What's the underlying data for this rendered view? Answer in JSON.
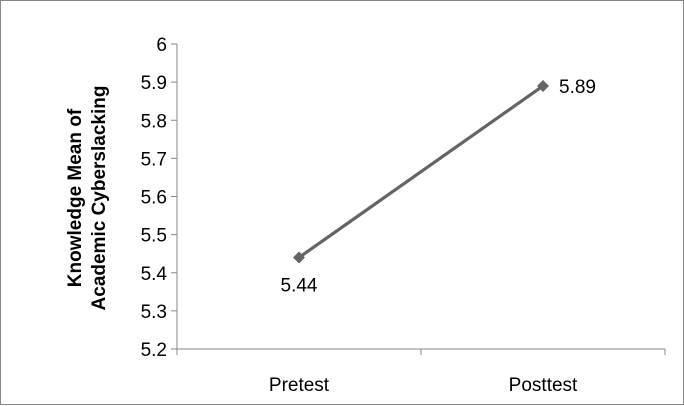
{
  "chart_data": {
    "type": "line",
    "categories": [
      "Pretest",
      "Posttest"
    ],
    "series": [
      {
        "values": [
          5.44,
          5.89
        ],
        "labels": [
          "5.44",
          "5.89"
        ],
        "color": "#646464"
      }
    ],
    "title": "",
    "xlabel": "",
    "ylabel_lines": [
      "Knowledge Mean of",
      "Academic Cyberslacking"
    ],
    "ylim": [
      5.2,
      6
    ],
    "yticks": [
      5.2,
      5.3,
      5.4,
      5.5,
      5.6,
      5.7,
      5.8,
      5.9,
      6
    ],
    "ytick_labels": [
      "5.2",
      "5.3",
      "5.4",
      "5.5",
      "5.6",
      "5.7",
      "5.8",
      "5.9",
      "6"
    ],
    "marker": "diamond",
    "grid": false,
    "legend": "none",
    "axis_color": "#868686"
  }
}
